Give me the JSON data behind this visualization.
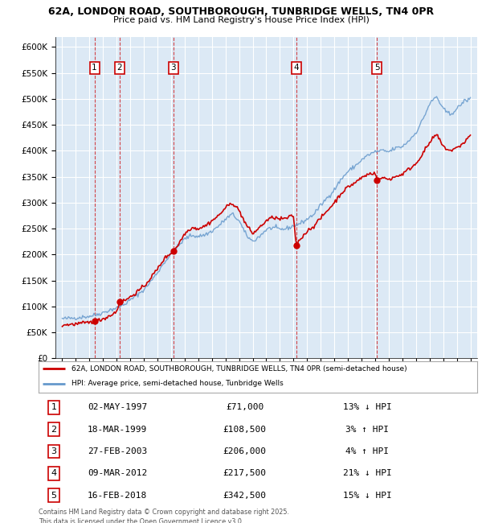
{
  "title_line1": "62A, LONDON ROAD, SOUTHBOROUGH, TUNBRIDGE WELLS, TN4 0PR",
  "title_line2": "Price paid vs. HM Land Registry's House Price Index (HPI)",
  "background_color": "#dce9f5",
  "legend_line1": "62A, LONDON ROAD, SOUTHBOROUGH, TUNBRIDGE WELLS, TN4 0PR (semi-detached house)",
  "legend_line2": "HPI: Average price, semi-detached house, Tunbridge Wells",
  "sale_points": [
    {
      "num": 1,
      "year": 1997.37,
      "price": 71000,
      "date": "02-MAY-1997",
      "pct": "13%",
      "dir": "↓"
    },
    {
      "num": 2,
      "year": 1999.22,
      "price": 108500,
      "date": "18-MAR-1999",
      "pct": "3%",
      "dir": "↑"
    },
    {
      "num": 3,
      "year": 2003.16,
      "price": 206000,
      "date": "27-FEB-2003",
      "pct": "4%",
      "dir": "↑"
    },
    {
      "num": 4,
      "year": 2012.19,
      "price": 217500,
      "date": "09-MAR-2012",
      "pct": "21%",
      "dir": "↓"
    },
    {
      "num": 5,
      "year": 2018.12,
      "price": 342500,
      "date": "16-FEB-2018",
      "pct": "15%",
      "dir": "↓"
    }
  ],
  "footer_line1": "Contains HM Land Registry data © Crown copyright and database right 2025.",
  "footer_line2": "This data is licensed under the Open Government Licence v3.0.",
  "ylim": [
    0,
    620000
  ],
  "xlim": [
    1994.5,
    2025.5
  ],
  "red_color": "#cc0000",
  "blue_color": "#6699cc",
  "hpi_anchors": [
    [
      1995.0,
      76000
    ],
    [
      1995.5,
      77000
    ],
    [
      1996.0,
      78000
    ],
    [
      1996.5,
      79500
    ],
    [
      1997.0,
      81000
    ],
    [
      1997.5,
      84000
    ],
    [
      1998.0,
      88000
    ],
    [
      1998.5,
      93000
    ],
    [
      1999.0,
      97000
    ],
    [
      1999.5,
      103000
    ],
    [
      2000.0,
      112000
    ],
    [
      2000.5,
      122000
    ],
    [
      2001.0,
      132000
    ],
    [
      2001.5,
      148000
    ],
    [
      2002.0,
      165000
    ],
    [
      2002.5,
      185000
    ],
    [
      2003.0,
      200000
    ],
    [
      2003.5,
      215000
    ],
    [
      2004.0,
      230000
    ],
    [
      2004.5,
      237000
    ],
    [
      2005.0,
      235000
    ],
    [
      2005.5,
      238000
    ],
    [
      2006.0,
      245000
    ],
    [
      2006.5,
      255000
    ],
    [
      2007.0,
      268000
    ],
    [
      2007.5,
      278000
    ],
    [
      2008.0,
      265000
    ],
    [
      2008.5,
      238000
    ],
    [
      2009.0,
      225000
    ],
    [
      2009.5,
      235000
    ],
    [
      2010.0,
      248000
    ],
    [
      2010.5,
      252000
    ],
    [
      2011.0,
      248000
    ],
    [
      2011.5,
      250000
    ],
    [
      2012.0,
      255000
    ],
    [
      2012.5,
      260000
    ],
    [
      2013.0,
      268000
    ],
    [
      2013.5,
      278000
    ],
    [
      2014.0,
      295000
    ],
    [
      2014.5,
      310000
    ],
    [
      2015.0,
      325000
    ],
    [
      2015.5,
      345000
    ],
    [
      2016.0,
      360000
    ],
    [
      2016.5,
      370000
    ],
    [
      2017.0,
      382000
    ],
    [
      2017.5,
      392000
    ],
    [
      2018.0,
      398000
    ],
    [
      2018.5,
      400000
    ],
    [
      2019.0,
      398000
    ],
    [
      2019.5,
      405000
    ],
    [
      2020.0,
      408000
    ],
    [
      2020.5,
      420000
    ],
    [
      2021.0,
      435000
    ],
    [
      2021.5,
      460000
    ],
    [
      2022.0,
      490000
    ],
    [
      2022.5,
      505000
    ],
    [
      2023.0,
      480000
    ],
    [
      2023.5,
      470000
    ],
    [
      2024.0,
      480000
    ],
    [
      2024.5,
      495000
    ],
    [
      2025.0,
      500000
    ]
  ],
  "prop_anchors": [
    [
      1995.0,
      64000
    ],
    [
      1995.5,
      65000
    ],
    [
      1996.0,
      66000
    ],
    [
      1996.5,
      67500
    ],
    [
      1997.0,
      69000
    ],
    [
      1997.37,
      71000
    ],
    [
      1997.5,
      72000
    ],
    [
      1998.0,
      76000
    ],
    [
      1998.5,
      82000
    ],
    [
      1999.0,
      90000
    ],
    [
      1999.22,
      108500
    ],
    [
      1999.5,
      110000
    ],
    [
      2000.0,
      118000
    ],
    [
      2000.5,
      128000
    ],
    [
      2001.0,
      138000
    ],
    [
      2001.5,
      155000
    ],
    [
      2002.0,
      172000
    ],
    [
      2002.5,
      192000
    ],
    [
      2003.0,
      203000
    ],
    [
      2003.16,
      206000
    ],
    [
      2003.5,
      218000
    ],
    [
      2004.0,
      240000
    ],
    [
      2004.5,
      252000
    ],
    [
      2005.0,
      250000
    ],
    [
      2005.5,
      255000
    ],
    [
      2006.0,
      265000
    ],
    [
      2006.5,
      275000
    ],
    [
      2007.0,
      290000
    ],
    [
      2007.5,
      300000
    ],
    [
      2008.0,
      285000
    ],
    [
      2008.5,
      258000
    ],
    [
      2009.0,
      240000
    ],
    [
      2009.5,
      252000
    ],
    [
      2010.0,
      265000
    ],
    [
      2010.5,
      272000
    ],
    [
      2011.0,
      268000
    ],
    [
      2011.5,
      270000
    ],
    [
      2012.0,
      275000
    ],
    [
      2012.19,
      217500
    ],
    [
      2012.5,
      230000
    ],
    [
      2013.0,
      245000
    ],
    [
      2013.5,
      255000
    ],
    [
      2014.0,
      270000
    ],
    [
      2014.5,
      285000
    ],
    [
      2015.0,
      300000
    ],
    [
      2015.5,
      318000
    ],
    [
      2016.0,
      330000
    ],
    [
      2016.5,
      338000
    ],
    [
      2017.0,
      348000
    ],
    [
      2017.5,
      355000
    ],
    [
      2018.0,
      358000
    ],
    [
      2018.12,
      342500
    ],
    [
      2018.5,
      348000
    ],
    [
      2019.0,
      345000
    ],
    [
      2019.5,
      350000
    ],
    [
      2020.0,
      355000
    ],
    [
      2020.5,
      365000
    ],
    [
      2021.0,
      375000
    ],
    [
      2021.5,
      395000
    ],
    [
      2022.0,
      415000
    ],
    [
      2022.5,
      432000
    ],
    [
      2023.0,
      408000
    ],
    [
      2023.5,
      400000
    ],
    [
      2024.0,
      405000
    ],
    [
      2024.5,
      415000
    ],
    [
      2025.0,
      430000
    ]
  ]
}
